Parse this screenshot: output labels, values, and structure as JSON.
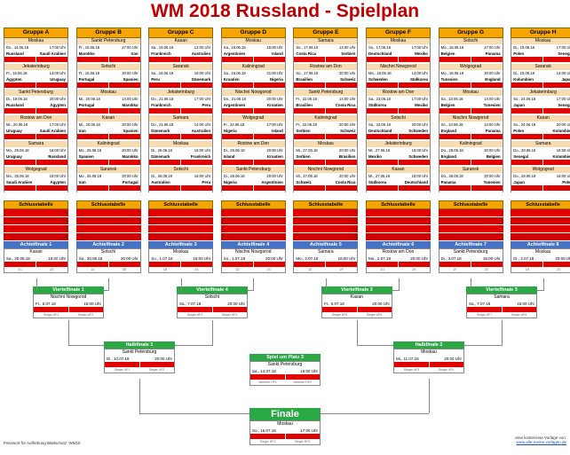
{
  "title": "WM 2018 Russland - Spielplan",
  "groups": [
    {
      "name": "Gruppe A",
      "matches": [
        {
          "city": "Moskau",
          "date": "Do., 14.06.18",
          "time": "17:00 Uhr",
          "home": "Russland",
          "away": "Saudi Arabien"
        },
        {
          "city": "Jekaterinburg",
          "date": "Fr., 15.06.18",
          "time": "14:00 Uhr",
          "home": "Ägypten",
          "away": "Uruguay"
        },
        {
          "city": "Sankt Petersburg",
          "date": "Di., 19.06.18",
          "time": "20:00 Uhr",
          "home": "Russland",
          "away": "Ägypten"
        },
        {
          "city": "Rostow am Don",
          "date": "Mi., 20.06.18",
          "time": "17:00 Uhr",
          "home": "Uruguay",
          "away": "Saudi Arabien"
        },
        {
          "city": "Samara",
          "date": "Mo., 25.06.18",
          "time": "16:00 Uhr",
          "home": "Uruguay",
          "away": "Russland"
        },
        {
          "city": "Wolgograd",
          "date": "Mo., 25.06.18",
          "time": "16:00 Uhr",
          "home": "Saudi Arabien",
          "away": "Ägypten"
        }
      ]
    },
    {
      "name": "Gruppe B",
      "matches": [
        {
          "city": "Sankt Petersburg",
          "date": "Fr., 15.06.18",
          "time": "17:00 Uhr",
          "home": "Marokko",
          "away": "Iran"
        },
        {
          "city": "Sotschi",
          "date": "Fr., 15.06.18",
          "time": "20:00 Uhr",
          "home": "Portugal",
          "away": "Spanien"
        },
        {
          "city": "Moskau",
          "date": "Mi., 20.06.18",
          "time": "14:00 Uhr",
          "home": "Portugal",
          "away": "Marokko"
        },
        {
          "city": "Kasan",
          "date": "Mi., 20.06.18",
          "time": "20:00 Uhr",
          "home": "Iran",
          "away": "Spanien"
        },
        {
          "city": "Kaliningrad",
          "date": "Mo., 25.06.18",
          "time": "20:00 Uhr",
          "home": "Spanien",
          "away": "Marokko"
        },
        {
          "city": "Saransk",
          "date": "Mo., 25.06.18",
          "time": "20:00 Uhr",
          "home": "Iran",
          "away": "Portugal"
        }
      ]
    },
    {
      "name": "Gruppe C",
      "matches": [
        {
          "city": "Kasan",
          "date": "Sa., 16.06.18",
          "time": "12:00 Uhr",
          "home": "Frankreich",
          "away": "Australien"
        },
        {
          "city": "Saransk",
          "date": "Sa., 16.06.18",
          "time": "18:00 Uhr",
          "home": "Peru",
          "away": "Dänemark"
        },
        {
          "city": "Jekaterinburg",
          "date": "Do., 21.06.18",
          "time": "17:00 Uhr",
          "home": "Frankreich",
          "away": "Peru"
        },
        {
          "city": "Samara",
          "date": "Do., 21.06.18",
          "time": "14:00 Uhr",
          "home": "Dänemark",
          "away": "Australien"
        },
        {
          "city": "Moskau",
          "date": "Di., 26.06.18",
          "time": "16:00 Uhr",
          "home": "Dänemark",
          "away": "Frankreich"
        },
        {
          "city": "Sotschi",
          "date": "Di., 26.06.18",
          "time": "16:00 Uhr",
          "home": "Australien",
          "away": "Peru"
        }
      ]
    },
    {
      "name": "Gruppe D",
      "matches": [
        {
          "city": "Moskau",
          "date": "Sa., 16.06.18",
          "time": "15:00 Uhr",
          "home": "Argentinien",
          "away": "Island"
        },
        {
          "city": "Kaliningrad",
          "date": "Sa., 16.06.18",
          "time": "21:00 Uhr",
          "home": "Kroatien",
          "away": "Nigeria"
        },
        {
          "city": "Nischni Nowgorod",
          "date": "Do., 21.06.18",
          "time": "20:00 Uhr",
          "home": "Argentinien",
          "away": "Kroatien"
        },
        {
          "city": "Wolgograd",
          "date": "Fr., 22.06.18",
          "time": "17:00 Uhr",
          "home": "Nigeria",
          "away": "Island"
        },
        {
          "city": "Rostow am Don",
          "date": "Di., 26.06.18",
          "time": "20:00 Uhr",
          "home": "Island",
          "away": "Kroatien"
        },
        {
          "city": "Sankt Petersburg",
          "date": "Di., 26.06.18",
          "time": "20:00 Uhr",
          "home": "Nigeria",
          "away": "Argentinien"
        }
      ]
    },
    {
      "name": "Gruppe E",
      "matches": [
        {
          "city": "Samara",
          "date": "So., 17.06.18",
          "time": "14:00 Uhr",
          "home": "Costa Rica",
          "away": "Serbien"
        },
        {
          "city": "Rostow am Don",
          "date": "So., 17.06.18",
          "time": "20:00 Uhr",
          "home": "Brasilien",
          "away": "Schweiz"
        },
        {
          "city": "Sankt Petersburg",
          "date": "Fr., 22.06.18",
          "time": "14:00 Uhr",
          "home": "Brasilien",
          "away": "Costa Rica"
        },
        {
          "city": "Kaliningrad",
          "date": "Fr., 22.06.18",
          "time": "20:00 Uhr",
          "home": "Serbien",
          "away": "Schweiz"
        },
        {
          "city": "Moskau",
          "date": "Mi., 27.06.18",
          "time": "20:00 Uhr",
          "home": "Serbien",
          "away": "Brasilien"
        },
        {
          "city": "Nischni Nowgorod",
          "date": "Mi., 27.06.18",
          "time": "20:00 Uhr",
          "home": "Schweiz",
          "away": "Costa Rica"
        }
      ]
    },
    {
      "name": "Gruppe F",
      "matches": [
        {
          "city": "Moskau",
          "date": "So., 17.06.18",
          "time": "17:00 Uhr",
          "home": "Deutschland",
          "away": "Mexiko"
        },
        {
          "city": "Nischni Nowgorod",
          "date": "Mo., 18.06.18",
          "time": "14:00 Uhr",
          "home": "Schweden",
          "away": "Südkorea"
        },
        {
          "city": "Rostow am Don",
          "date": "Sa., 23.06.18",
          "time": "17:00 Uhr",
          "home": "Südkorea",
          "away": "Mexiko"
        },
        {
          "city": "Sotschi",
          "date": "Sa., 23.06.18",
          "time": "20:00 Uhr",
          "home": "Deutschland",
          "away": "Schweden"
        },
        {
          "city": "Jekaterinburg",
          "date": "Mi., 27.06.18",
          "time": "16:00 Uhr",
          "home": "Mexiko",
          "away": "Schweden"
        },
        {
          "city": "Kasan",
          "date": "Mi., 27.06.18",
          "time": "16:00 Uhr",
          "home": "Südkorea",
          "away": "Deutschland"
        }
      ]
    },
    {
      "name": "Gruppe G",
      "matches": [
        {
          "city": "Sotschi",
          "date": "Mo., 18.06.18",
          "time": "17:00 Uhr",
          "home": "Belgien",
          "away": "Panama"
        },
        {
          "city": "Wolgograd",
          "date": "Mo., 18.06.18",
          "time": "20:00 Uhr",
          "home": "Tunesien",
          "away": "England"
        },
        {
          "city": "Moskau",
          "date": "Sa., 23.06.18",
          "time": "14:00 Uhr",
          "home": "Belgien",
          "away": "Tunesien"
        },
        {
          "city": "Nischni Nowgorod",
          "date": "So., 24.06.18",
          "time": "14:00 Uhr",
          "home": "England",
          "away": "Panama"
        },
        {
          "city": "Kaliningrad",
          "date": "Do., 28.06.18",
          "time": "20:00 Uhr",
          "home": "England",
          "away": "Belgien"
        },
        {
          "city": "Saransk",
          "date": "Do., 28.06.18",
          "time": "20:00 Uhr",
          "home": "Panama",
          "away": "Tunesien"
        }
      ]
    },
    {
      "name": "Gruppe H",
      "matches": [
        {
          "city": "Moskau",
          "date": "Di., 19.06.18",
          "time": "17:00 Uhr",
          "home": "Polen",
          "away": "Senegal"
        },
        {
          "city": "Saransk",
          "date": "Di., 19.06.18",
          "time": "14:00 Uhr",
          "home": "Kolumbien",
          "away": "Japan"
        },
        {
          "city": "Jekaterinburg",
          "date": "So., 24.06.18",
          "time": "17:00 Uhr",
          "home": "Japan",
          "away": "Senegal"
        },
        {
          "city": "Kasan",
          "date": "So., 24.06.18",
          "time": "20:00 Uhr",
          "home": "Polen",
          "away": "Kolumbien"
        },
        {
          "city": "Samara",
          "date": "Do., 28.06.18",
          "time": "16:00 Uhr",
          "home": "Senegal",
          "away": "Kolumbien"
        },
        {
          "city": "Wolgograd",
          "date": "Do., 28.06.18",
          "time": "16:00 Uhr",
          "home": "Japan",
          "away": "Polen"
        }
      ]
    }
  ],
  "table_label": "Schlusstabelle",
  "table_ranks": [
    "1A",
    "2A",
    "3A",
    "4A"
  ],
  "r16": [
    {
      "name": "Achtelfinale 1",
      "city": "Kasan",
      "date": "Sa., 30.06.18",
      "time": "16:00 Uhr",
      "sub1": "1C",
      "sub2": "2D"
    },
    {
      "name": "Achtelfinale 2",
      "city": "Sotschi",
      "date": "Sa., 30.06.18",
      "time": "20:00 Uhr",
      "sub1": "1A",
      "sub2": "2B"
    },
    {
      "name": "Achtelfinale 3",
      "city": "Moskau",
      "date": "So., 1.07.18",
      "time": "16:00 Uhr",
      "sub1": "1B",
      "sub2": "2A"
    },
    {
      "name": "Achtelfinale 4",
      "city": "Nischni Nowgorod",
      "date": "So., 1.07.18",
      "time": "20:00 Uhr",
      "sub1": "1D",
      "sub2": "2C"
    },
    {
      "name": "Achtelfinale 5",
      "city": "Samara",
      "date": "Mo., 2.07.18",
      "time": "16:00 Uhr",
      "sub1": "1E",
      "sub2": "2F"
    },
    {
      "name": "Achtelfinale 6",
      "city": "Rostow am Don",
      "date": "Mo., 2.07.18",
      "time": "20:00 Uhr",
      "sub1": "1G",
      "sub2": "2H"
    },
    {
      "name": "Achtelfinale 7",
      "city": "Sankt Petersburg",
      "date": "Di., 3.07.18",
      "time": "16:00 Uhr",
      "sub1": "1F",
      "sub2": "2E"
    },
    {
      "name": "Achtelfinale 8",
      "city": "Moskau",
      "date": "Di., 3.07.18",
      "time": "20:00 Uhr",
      "sub1": "1H",
      "sub2": "2G"
    }
  ],
  "qf": [
    {
      "name": "Viertelfinale 1",
      "city": "Nischni Nowgorod",
      "date": "Fr., 6.07.18",
      "time": "16:00 Uhr",
      "sub1": "Sieger AF1",
      "sub2": "Sieger AF2"
    },
    {
      "name": "Viertelfinale 4",
      "city": "Sotschi",
      "date": "Sa., 7.07.18",
      "time": "20:00 Uhr",
      "sub1": "Sieger AF3",
      "sub2": "Sieger AF4"
    },
    {
      "name": "Viertelfinale 2",
      "city": "Kasan",
      "date": "Fr., 6.07.18",
      "time": "20:00 Uhr",
      "sub1": "Sieger AF5",
      "sub2": "Sieger AF6"
    },
    {
      "name": "Viertelfinale 3",
      "city": "Samara",
      "date": "Sa., 7.07.18",
      "time": "16:00 Uhr",
      "sub1": "Sieger AF7",
      "sub2": "Sieger AF8"
    }
  ],
  "sf": [
    {
      "name": "Halbfinale 1",
      "city": "Sankt Petersburg",
      "date": "Di., 10.07.18",
      "time": "20:00 Uhr",
      "sub1": "Sieger VF1",
      "sub2": "Sieger VF2"
    },
    {
      "name": "Halbfinale 2",
      "city": "Moskau",
      "date": "Mi., 11.07.18",
      "time": "20:00 Uhr",
      "sub1": "Sieger VF3",
      "sub2": "Sieger VF4"
    }
  ],
  "third": {
    "name": "Spiel um Platz 3",
    "city": "Sankt Petersburg",
    "date": "Sa., 14.07.18",
    "time": "16:00 Uhr",
    "sub1": "Verlierer HF1",
    "sub2": "Verlierer HF2"
  },
  "final": {
    "name": "Finale",
    "city": "Moskau",
    "date": "So., 15.07.18",
    "time": "17:00 Uhr",
    "sub1": "Sieger HF1",
    "sub2": "Sieger HF2"
  },
  "footer": {
    "left": "Passwort für Aufhebung Blattschutz: WM18",
    "right1": "eine kostenlose Vorlage von:",
    "right2": "www.alle-meine-vorlagen.de"
  },
  "colors": {
    "title": "#c00000",
    "group": "#f5a400",
    "r16": "#4472c4",
    "ko": "#2aa844",
    "score": "#e00000"
  }
}
